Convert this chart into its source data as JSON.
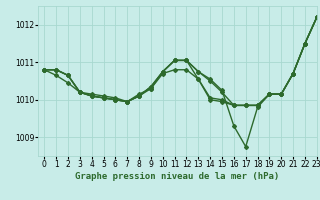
{
  "title": "Graphe pression niveau de la mer (hPa)",
  "xlim": [
    -0.5,
    23
  ],
  "ylim": [
    1008.5,
    1012.5
  ],
  "yticks": [
    1009,
    1010,
    1011,
    1012
  ],
  "xticks": [
    0,
    1,
    2,
    3,
    4,
    5,
    6,
    7,
    8,
    9,
    10,
    11,
    12,
    13,
    14,
    15,
    16,
    17,
    18,
    19,
    20,
    21,
    22,
    23
  ],
  "bg_color": "#c8ece8",
  "grid_color": "#a8d8d0",
  "line_color": "#2d6a2d",
  "series1": [
    1010.8,
    1010.8,
    1010.65,
    1010.2,
    1010.1,
    1010.05,
    1010.0,
    1009.95,
    1010.1,
    1010.35,
    1010.75,
    1011.05,
    1011.05,
    1010.55,
    1010.0,
    1009.95,
    1009.85,
    1009.85,
    1009.85,
    1010.15,
    1010.15,
    1010.7,
    1011.5,
    1012.2
  ],
  "series2": [
    1010.8,
    1010.8,
    1010.65,
    1010.2,
    1010.1,
    1010.05,
    1010.0,
    1009.95,
    1010.1,
    1010.35,
    1010.75,
    1011.05,
    1011.05,
    1010.75,
    1010.55,
    1010.25,
    1009.3,
    1008.75,
    1009.8,
    1010.15,
    1010.15,
    1010.7,
    1011.5,
    1012.2
  ],
  "series3": [
    1010.8,
    1010.8,
    1010.65,
    1010.2,
    1010.1,
    1010.05,
    1010.0,
    1009.95,
    1010.1,
    1010.3,
    1010.75,
    1011.05,
    1011.05,
    1010.75,
    1010.5,
    1010.2,
    1009.85,
    1009.85,
    1009.85,
    1010.15,
    1010.15,
    1010.7,
    1011.5,
    1012.2
  ],
  "series4": [
    1010.8,
    1010.65,
    1010.45,
    1010.2,
    1010.15,
    1010.1,
    1010.05,
    1009.95,
    1010.15,
    1010.3,
    1010.7,
    1010.8,
    1010.8,
    1010.55,
    1010.05,
    1010.0,
    1009.85,
    1009.85,
    1009.85,
    1010.15,
    1010.15,
    1010.7,
    1011.5,
    1012.2
  ],
  "line_width": 1.0,
  "marker": "D",
  "marker_size": 2.0,
  "label_fontsize": 6.5,
  "tick_fontsize": 5.5
}
